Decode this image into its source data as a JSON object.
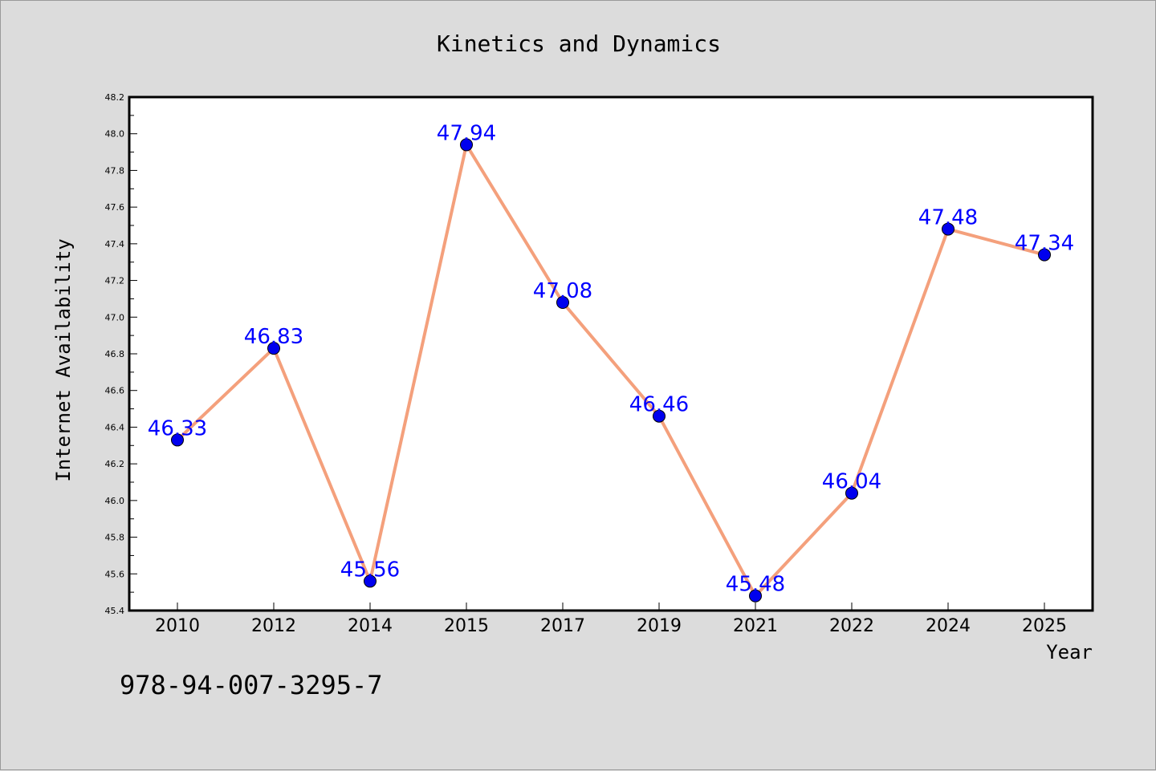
{
  "chart_data": {
    "type": "line",
    "title": "Kinetics and Dynamics",
    "xlabel": "Year",
    "ylabel": "Internet Availability",
    "categories": [
      "2010",
      "2012",
      "2014",
      "2015",
      "2017",
      "2019",
      "2021",
      "2022",
      "2024",
      "2025"
    ],
    "series": [
      {
        "values": [
          46.33,
          46.83,
          45.56,
          47.94,
          47.08,
          46.46,
          45.48,
          46.04,
          47.48,
          47.34
        ],
        "labels": [
          "46.33",
          "46.83",
          "45.56",
          "47.94",
          "47.08",
          "46.46",
          "45.48",
          "46.04",
          "47.48",
          "47.34"
        ],
        "line_color": "#f4a07c",
        "marker_color": "#0000ee",
        "label_color": "#0000ff"
      }
    ],
    "ylim": [
      45.4,
      48.2
    ],
    "yticks": [
      "45.4",
      "45.6",
      "45.8",
      "46.0",
      "46.2",
      "46.4",
      "46.6",
      "46.8",
      "47.0",
      "47.2",
      "47.4",
      "47.6",
      "47.8",
      "48.0",
      "48.2"
    ],
    "grid": false,
    "legend": "none"
  },
  "annotation": "978-94-007-3295-7"
}
